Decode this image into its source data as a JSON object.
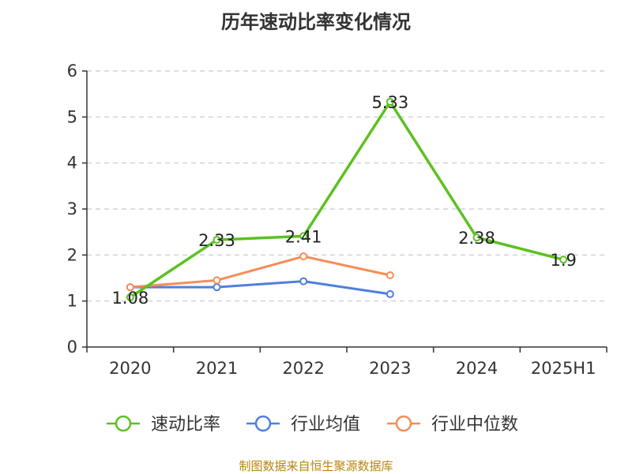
{
  "chart_data": {
    "type": "line",
    "title": "历年速动比率变化情况",
    "xlabel": "",
    "ylabel": "",
    "categories": [
      "2020",
      "2021",
      "2022",
      "2023",
      "2024",
      "2025H1"
    ],
    "ylim": [
      0,
      6
    ],
    "yticks": [
      0,
      1,
      2,
      3,
      4,
      5,
      6
    ],
    "grid": true,
    "legend_position": "bottom",
    "series": [
      {
        "name": "速动比率",
        "color": "#5cc121",
        "values": [
          1.08,
          2.33,
          2.41,
          5.33,
          2.38,
          1.9
        ],
        "data_labels": [
          "1.08",
          "2.33",
          "2.41",
          "5.33",
          "2.38",
          "1.9"
        ]
      },
      {
        "name": "行业均值",
        "color": "#4f7fdc",
        "values": [
          1.3,
          1.3,
          1.43,
          1.15,
          null,
          null
        ]
      },
      {
        "name": "行业中位数",
        "color": "#f58d57",
        "values": [
          1.3,
          1.45,
          1.97,
          1.56,
          null,
          null
        ]
      }
    ]
  },
  "source_note": "制图数据来自恒生聚源数据库"
}
